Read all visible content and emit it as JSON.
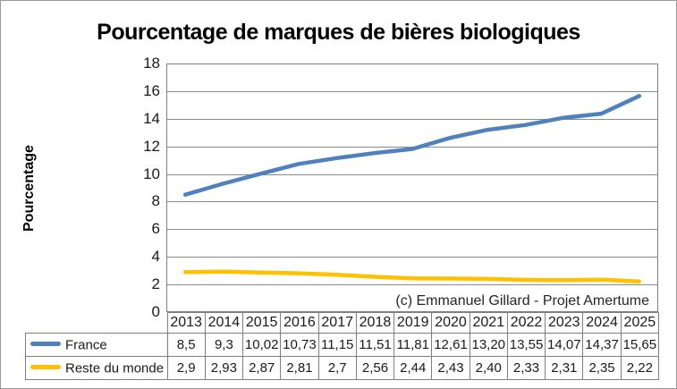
{
  "chart_data": {
    "type": "line",
    "title": "Pourcentage de marques de bières biologiques",
    "ylabel": "Pourcentage",
    "xlabel": "",
    "annotation": "(c) Emmanuel Gillard - Projet Amertume",
    "categories": [
      "2013",
      "2014",
      "2015",
      "2016",
      "2017",
      "2018",
      "2019",
      "2020",
      "2021",
      "2022",
      "2023",
      "2024",
      "2025"
    ],
    "series": [
      {
        "name": "France",
        "color": "#4F81BD",
        "values": [
          8.5,
          9.3,
          10.02,
          10.73,
          11.15,
          11.51,
          11.81,
          12.61,
          13.2,
          13.55,
          14.07,
          14.37,
          15.65
        ],
        "labels": [
          "8,5",
          "9,3",
          "10,02",
          "10,73",
          "11,15",
          "11,51",
          "11,81",
          "12,61",
          "13,20",
          "13,55",
          "14,07",
          "14,37",
          "15,65"
        ]
      },
      {
        "name": "Reste du monde",
        "color": "#FFC000",
        "values": [
          2.9,
          2.93,
          2.87,
          2.81,
          2.7,
          2.56,
          2.44,
          2.43,
          2.4,
          2.33,
          2.31,
          2.35,
          2.22
        ],
        "labels": [
          "2,9",
          "2,93",
          "2,87",
          "2,81",
          "2,7",
          "2,56",
          "2,44",
          "2,43",
          "2,40",
          "2,33",
          "2,31",
          "2,35",
          "2,22"
        ]
      }
    ],
    "ylim": [
      0,
      18
    ],
    "y_ticks": [
      0,
      2,
      4,
      6,
      8,
      10,
      12,
      14,
      16,
      18
    ],
    "grid": true,
    "legend_position": "data-table-left",
    "colors": {
      "gridline": "#8A8A8A",
      "table_border": "#7F7F7F",
      "text": "#1A1A1A"
    }
  }
}
